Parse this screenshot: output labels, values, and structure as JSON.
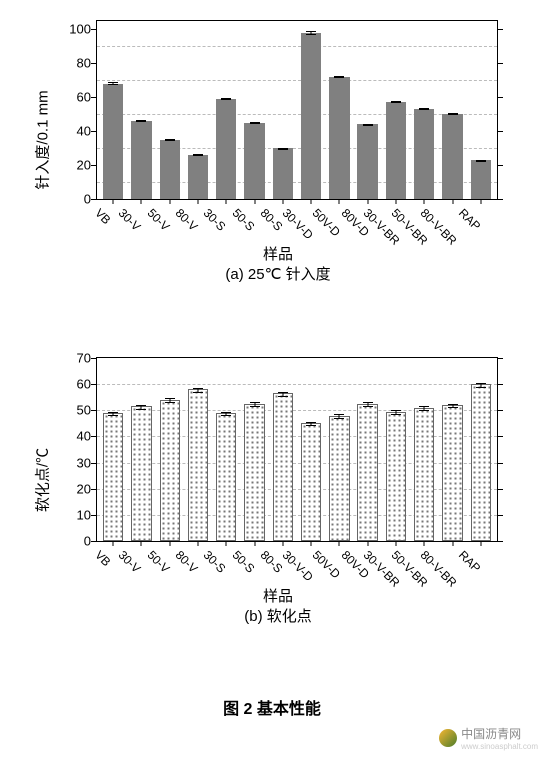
{
  "figure_caption": "图 2   基本性能",
  "watermark": {
    "text": "中国沥青网",
    "sub": "www.sinoasphalt.com"
  },
  "chart_a": {
    "type": "bar",
    "subcaption": "(a) 25℃ 针入度",
    "ylabel": "针入度/0.1 mm",
    "xlabel": "样品",
    "ylim": [
      0,
      105
    ],
    "yticks": [
      0,
      20,
      40,
      60,
      80,
      100
    ],
    "grid_vals": [
      10,
      30,
      50,
      70,
      90
    ],
    "bar_color": "#808080",
    "grid_color": "#bbbbbb",
    "error_half": 1.2,
    "categories": [
      "VB",
      "30-V",
      "50-V",
      "80-V",
      "30-S",
      "50-S",
      "80-S",
      "30-V-D",
      "50V-D",
      "80V-D",
      "30-V-BR",
      "50-V-BR",
      "80-V-BR",
      "RAP"
    ],
    "values": [
      68,
      46,
      35,
      26,
      59,
      45,
      30,
      98,
      72,
      44,
      57,
      53,
      50,
      23
    ]
  },
  "chart_b": {
    "type": "bar",
    "subcaption": "(b) 软化点",
    "ylabel": "软化点/℃",
    "xlabel": "样品",
    "ylim": [
      0,
      70
    ],
    "yticks": [
      0,
      10,
      20,
      30,
      40,
      50,
      60,
      70
    ],
    "grid_vals": [
      10,
      20,
      30,
      40,
      50,
      60
    ],
    "bar_pattern": "dots",
    "bar_border": "#666666",
    "error_half": 1.2,
    "categories": [
      "VB",
      "30-V",
      "50-V",
      "80-V",
      "30-S",
      "50-S",
      "80-S",
      "30-V-D",
      "50V-D",
      "80V-D",
      "30-V-BR",
      "50-V-BR",
      "80-V-BR",
      "RAP"
    ],
    "values": [
      49,
      51.5,
      54,
      58,
      49,
      52.5,
      56.5,
      45,
      48,
      52.5,
      49.5,
      51,
      52,
      60
    ]
  },
  "layout": {
    "xaxis_label_top_a": 233,
    "subcap_top_a": 253,
    "xaxis_label_top_b": 238,
    "subcap_top_b": 258,
    "figcap_top": 695
  }
}
